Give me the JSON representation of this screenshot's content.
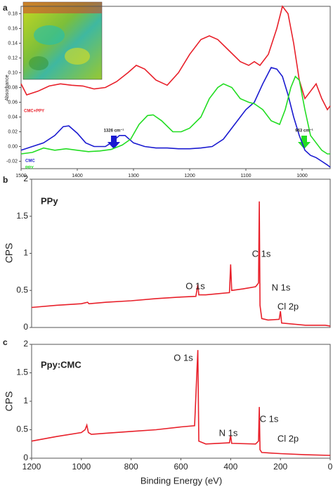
{
  "chart_data": [
    {
      "type": "line",
      "panel_label": "a",
      "ylabel": "Absorbance",
      "xlim": [
        1500,
        950
      ],
      "ylim": [
        -0.03,
        0.19
      ],
      "xticks": [
        1500,
        1400,
        1300,
        1200,
        1100,
        1000
      ],
      "yticks": [
        -0.02,
        {
          "value": 0,
          "label": "0.00"
        },
        0.02,
        0.04,
        0.06,
        0.08,
        {
          "value": 0.1,
          "label": "0.10"
        },
        0.12,
        0.14,
        0.16,
        0.18
      ],
      "annotations": [
        "1326 cm⁻¹",
        "963 cm⁻¹"
      ],
      "series": [
        {
          "name": "CMC+PPY",
          "color": "#e8202a",
          "x": [
            1500,
            1490,
            1470,
            1450,
            1430,
            1410,
            1390,
            1370,
            1350,
            1330,
            1310,
            1295,
            1280,
            1260,
            1240,
            1220,
            1200,
            1180,
            1165,
            1150,
            1130,
            1110,
            1095,
            1085,
            1075,
            1060,
            1045,
            1035,
            1025,
            1015,
            1005,
            995,
            985,
            975,
            965,
            955,
            950
          ],
          "values": [
            0.085,
            0.07,
            0.075,
            0.082,
            0.085,
            0.083,
            0.082,
            0.078,
            0.08,
            0.088,
            0.1,
            0.11,
            0.105,
            0.09,
            0.083,
            0.1,
            0.125,
            0.145,
            0.15,
            0.145,
            0.13,
            0.115,
            0.11,
            0.115,
            0.11,
            0.125,
            0.16,
            0.19,
            0.18,
            0.14,
            0.09,
            0.065,
            0.075,
            0.085,
            0.065,
            0.05,
            0.055
          ]
        },
        {
          "name": "CMC",
          "color": "#1a1ad0",
          "x": [
            1500,
            1480,
            1460,
            1440,
            1425,
            1415,
            1400,
            1385,
            1370,
            1350,
            1340,
            1325,
            1315,
            1300,
            1280,
            1260,
            1240,
            1220,
            1200,
            1180,
            1160,
            1140,
            1120,
            1100,
            1085,
            1070,
            1055,
            1045,
            1035,
            1025,
            1015,
            1005,
            995,
            985,
            975,
            965,
            955,
            950
          ],
          "values": [
            -0.005,
            0.0,
            0.005,
            0.015,
            0.027,
            0.028,
            0.018,
            0.005,
            0.0,
            0.0,
            0.005,
            0.015,
            0.015,
            0.005,
            0.0,
            -0.002,
            -0.002,
            -0.003,
            -0.003,
            -0.002,
            0.0,
            0.01,
            0.03,
            0.05,
            0.06,
            0.085,
            0.107,
            0.105,
            0.095,
            0.07,
            0.04,
            0.015,
            -0.005,
            -0.012,
            -0.015,
            -0.02,
            -0.025,
            -0.028
          ]
        },
        {
          "name": "PPY",
          "color": "#22dd22",
          "x": [
            1500,
            1480,
            1460,
            1440,
            1420,
            1400,
            1380,
            1360,
            1340,
            1320,
            1305,
            1290,
            1275,
            1265,
            1250,
            1230,
            1215,
            1200,
            1180,
            1165,
            1150,
            1140,
            1125,
            1110,
            1095,
            1085,
            1070,
            1055,
            1040,
            1030,
            1020,
            1012,
            1005,
            995,
            985,
            975,
            965,
            955,
            950
          ],
          "values": [
            -0.01,
            -0.008,
            -0.002,
            -0.005,
            -0.003,
            -0.005,
            -0.007,
            -0.006,
            -0.004,
            0.002,
            0.01,
            0.03,
            0.042,
            0.043,
            0.035,
            0.02,
            0.02,
            0.025,
            0.04,
            0.065,
            0.08,
            0.085,
            0.08,
            0.065,
            0.06,
            0.058,
            0.05,
            0.035,
            0.03,
            0.05,
            0.08,
            0.095,
            0.09,
            0.05,
            0.015,
            0.005,
            -0.005,
            -0.01,
            -0.01
          ]
        }
      ]
    },
    {
      "type": "line",
      "panel_label": "b",
      "ylabel": "CPS",
      "sample": "PPy",
      "xlim": [
        1200,
        0
      ],
      "ylim": [
        0,
        2
      ],
      "yticks": [
        0,
        0.5,
        1,
        1.5,
        2
      ],
      "annotations": [
        "O 1s",
        "N 1s",
        "C 1s",
        "Cl 2p"
      ],
      "series": [
        {
          "color": "#e8202a",
          "x": [
            1200,
            1100,
            1000,
            975,
            970,
            900,
            800,
            700,
            600,
            540,
            532,
            528,
            500,
            405,
            400,
            396,
            350,
            300,
            288,
            285,
            282,
            275,
            250,
            205,
            200,
            195,
            100,
            20,
            0
          ],
          "values": [
            0.27,
            0.3,
            0.32,
            0.34,
            0.32,
            0.34,
            0.36,
            0.39,
            0.41,
            0.42,
            0.58,
            0.44,
            0.44,
            0.47,
            0.85,
            0.5,
            0.52,
            0.55,
            0.6,
            1.7,
            0.3,
            0.12,
            0.1,
            0.11,
            0.22,
            0.06,
            0.03,
            0.03,
            0.02
          ]
        }
      ]
    },
    {
      "type": "line",
      "panel_label": "c",
      "ylabel": "CPS",
      "sample": "Ppy:CMC",
      "xlabel": "Binding Energy (eV)",
      "xlim": [
        1200,
        0
      ],
      "ylim": [
        0,
        2
      ],
      "yticks": [
        0,
        0.5,
        1,
        1.5,
        2
      ],
      "xticks": [
        1200,
        1000,
        800,
        600,
        400,
        200,
        0
      ],
      "annotations": [
        "O 1s",
        "N 1s",
        "C 1s",
        "Cl 2p"
      ],
      "series": [
        {
          "color": "#e8202a",
          "x": [
            1200,
            1100,
            1000,
            985,
            978,
            972,
            960,
            900,
            800,
            700,
            600,
            545,
            532,
            528,
            500,
            405,
            400,
            396,
            300,
            288,
            285,
            282,
            275,
            200,
            100,
            0
          ],
          "values": [
            0.3,
            0.38,
            0.45,
            0.5,
            0.58,
            0.45,
            0.42,
            0.44,
            0.47,
            0.5,
            0.55,
            0.57,
            1.9,
            0.3,
            0.25,
            0.27,
            0.4,
            0.26,
            0.25,
            0.3,
            0.9,
            0.15,
            0.1,
            0.08,
            0.06,
            0.05
          ]
        }
      ]
    }
  ]
}
